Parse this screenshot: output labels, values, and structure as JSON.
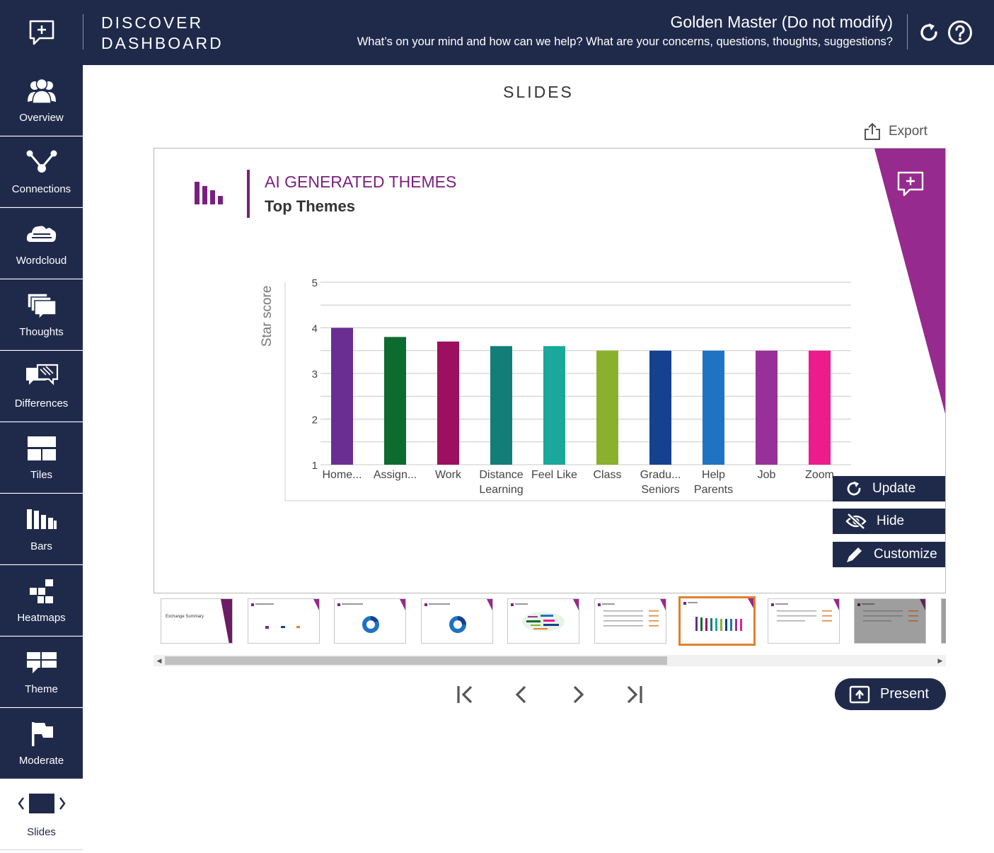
{
  "header": {
    "app_title_line1": "DISCOVER",
    "app_title_line2": "DASHBOARD",
    "session_name": "Golden Master (Do not modify)",
    "session_question": "What’s on your mind and how can we help? What are your concerns, questions, thoughts, suggestions?",
    "logo_icon": "chat-plus-icon",
    "refresh_icon": "refresh-icon",
    "help_icon": "help-icon"
  },
  "sidebar": {
    "items": [
      {
        "label": "Overview",
        "icon": "people-icon"
      },
      {
        "label": "Connections",
        "icon": "connections-icon"
      },
      {
        "label": "Wordcloud",
        "icon": "wordcloud-icon"
      },
      {
        "label": "Thoughts",
        "icon": "thoughts-icon"
      },
      {
        "label": "Differences",
        "icon": "differences-icon"
      },
      {
        "label": "Tiles",
        "icon": "tiles-icon"
      },
      {
        "label": "Bars",
        "icon": "bars-icon"
      },
      {
        "label": "Heatmaps",
        "icon": "heatmap-icon"
      },
      {
        "label": "Theme",
        "icon": "theme-icon"
      },
      {
        "label": "Moderate",
        "icon": "flag-icon"
      },
      {
        "label": "Slides",
        "icon": "slides-icon",
        "active": true
      }
    ]
  },
  "main": {
    "page_title": "SLIDES",
    "export_label": "Export"
  },
  "slide": {
    "eyebrow": "AI GENERATED THEMES",
    "title": "Top Themes",
    "accent_color": "#7b1f7e",
    "corner_color": "#962a8e"
  },
  "chart_data": {
    "type": "bar",
    "ylabel": "Star score",
    "xlabel": "",
    "ylim": [
      1,
      5
    ],
    "yticks": [
      1,
      2,
      3,
      4,
      5
    ],
    "categories": [
      [
        "Home..."
      ],
      [
        "Assign..."
      ],
      [
        "Work"
      ],
      [
        "Distance",
        "Learning"
      ],
      [
        "Feel Like"
      ],
      [
        "Class"
      ],
      [
        "Gradu...",
        "Seniors"
      ],
      [
        "Help",
        "Parents"
      ],
      [
        "Job"
      ],
      [
        "Zoom"
      ]
    ],
    "values": [
      4.0,
      3.8,
      3.7,
      3.6,
      3.6,
      3.5,
      3.5,
      3.5,
      3.5,
      3.5
    ],
    "colors": [
      "#6a2e93",
      "#0e6b30",
      "#9d1060",
      "#137e78",
      "#1aa89b",
      "#8ab12d",
      "#15418f",
      "#1e73c2",
      "#98309a",
      "#ea1d8b"
    ],
    "grid": true
  },
  "actions": {
    "update_label": "Update",
    "hide_label": "Hide",
    "customize_label": "Customize"
  },
  "thumbnails": {
    "selected_index": 6,
    "count": 10,
    "first_caption": "Exchange Summary"
  },
  "pager": {
    "first_icon": "first-page-icon",
    "prev_icon": "chevron-left-icon",
    "next_icon": "chevron-right-icon",
    "last_icon": "last-page-icon",
    "present_label": "Present"
  }
}
